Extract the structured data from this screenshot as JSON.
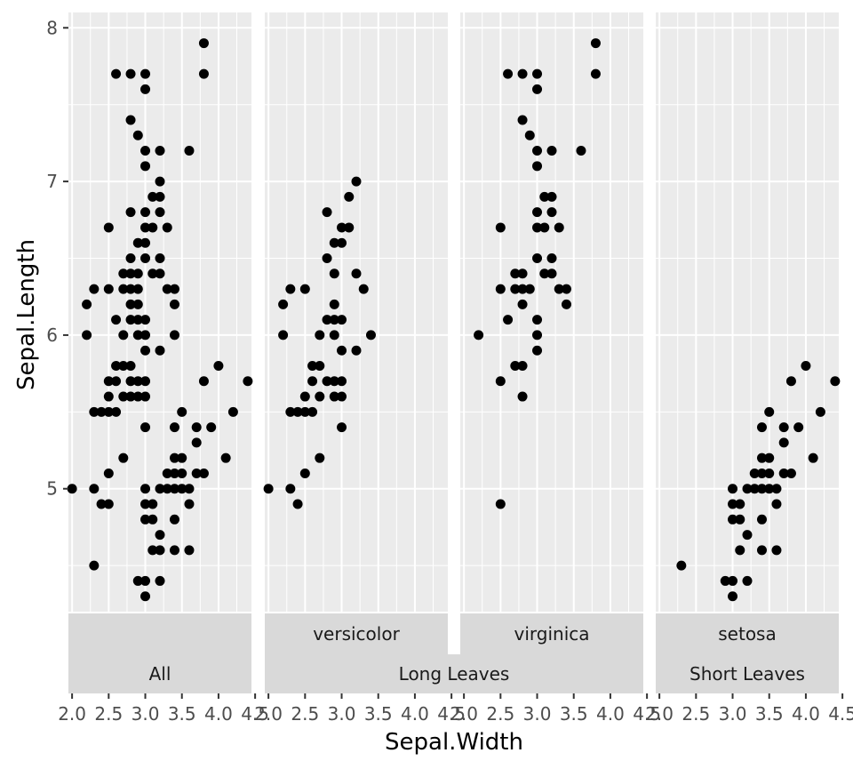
{
  "chart_data": {
    "type": "scatter",
    "xlabel": "Sepal.Width",
    "ylabel": "Sepal.Length",
    "xlim": [
      1.95,
      4.45
    ],
    "ylim": [
      4.2,
      8.1
    ],
    "x_ticks": [
      "2.0",
      "2.5",
      "3.0",
      "3.5",
      "4.0",
      "4.5"
    ],
    "y_ticks": [
      "5",
      "6",
      "7",
      "8"
    ],
    "x_tick_values": [
      2.0,
      2.5,
      3.0,
      3.5,
      4.0,
      4.5
    ],
    "y_tick_values": [
      5,
      6,
      7,
      8
    ],
    "colors": {
      "panel_background": "#ebebeb",
      "grid": "#ffffff",
      "strip_background": "#d9d9d9",
      "point": "#000000"
    },
    "panels": [
      {
        "strip_top": "",
        "strip_bottom": "All",
        "points": [
          [
            2.0,
            5.0
          ],
          [
            2.2,
            6.2
          ],
          [
            2.2,
            6.0
          ],
          [
            2.3,
            6.3
          ],
          [
            2.3,
            5.5
          ],
          [
            2.3,
            5.0
          ],
          [
            2.3,
            4.5
          ],
          [
            2.4,
            5.5
          ],
          [
            2.4,
            4.9
          ],
          [
            2.5,
            6.7
          ],
          [
            2.5,
            6.3
          ],
          [
            2.5,
            5.7
          ],
          [
            2.5,
            5.6
          ],
          [
            2.5,
            5.5
          ],
          [
            2.5,
            5.1
          ],
          [
            2.5,
            4.9
          ],
          [
            2.6,
            7.7
          ],
          [
            2.6,
            6.1
          ],
          [
            2.6,
            5.8
          ],
          [
            2.6,
            5.7
          ],
          [
            2.6,
            5.5
          ],
          [
            2.7,
            6.3
          ],
          [
            2.7,
            6.4
          ],
          [
            2.7,
            6.0
          ],
          [
            2.7,
            5.8
          ],
          [
            2.7,
            5.6
          ],
          [
            2.7,
            5.2
          ],
          [
            2.8,
            7.7
          ],
          [
            2.8,
            7.4
          ],
          [
            2.8,
            6.8
          ],
          [
            2.8,
            6.5
          ],
          [
            2.8,
            6.4
          ],
          [
            2.8,
            6.3
          ],
          [
            2.8,
            6.2
          ],
          [
            2.8,
            6.1
          ],
          [
            2.8,
            5.8
          ],
          [
            2.8,
            5.7
          ],
          [
            2.8,
            5.6
          ],
          [
            2.9,
            7.3
          ],
          [
            2.9,
            6.6
          ],
          [
            2.9,
            6.4
          ],
          [
            2.9,
            6.3
          ],
          [
            2.9,
            6.2
          ],
          [
            2.9,
            6.1
          ],
          [
            2.9,
            6.0
          ],
          [
            2.9,
            5.7
          ],
          [
            2.9,
            5.6
          ],
          [
            2.9,
            4.4
          ],
          [
            3.0,
            7.7
          ],
          [
            3.0,
            7.6
          ],
          [
            3.0,
            7.2
          ],
          [
            3.0,
            7.1
          ],
          [
            3.0,
            6.8
          ],
          [
            3.0,
            6.7
          ],
          [
            3.0,
            6.6
          ],
          [
            3.0,
            6.5
          ],
          [
            3.0,
            6.1
          ],
          [
            3.0,
            6.0
          ],
          [
            3.0,
            5.9
          ],
          [
            3.0,
            5.7
          ],
          [
            3.0,
            5.6
          ],
          [
            3.0,
            5.4
          ],
          [
            3.0,
            5.0
          ],
          [
            3.0,
            4.9
          ],
          [
            3.0,
            4.8
          ],
          [
            3.0,
            4.4
          ],
          [
            3.0,
            4.3
          ],
          [
            3.1,
            6.9
          ],
          [
            3.1,
            6.7
          ],
          [
            3.1,
            6.4
          ],
          [
            3.1,
            4.9
          ],
          [
            3.1,
            4.8
          ],
          [
            3.1,
            4.6
          ],
          [
            3.2,
            7.2
          ],
          [
            3.2,
            7.0
          ],
          [
            3.2,
            6.9
          ],
          [
            3.2,
            6.8
          ],
          [
            3.2,
            6.5
          ],
          [
            3.2,
            6.4
          ],
          [
            3.2,
            5.9
          ],
          [
            3.2,
            5.0
          ],
          [
            3.2,
            4.7
          ],
          [
            3.2,
            4.6
          ],
          [
            3.2,
            4.4
          ],
          [
            3.3,
            6.7
          ],
          [
            3.3,
            6.3
          ],
          [
            3.3,
            5.1
          ],
          [
            3.3,
            5.0
          ],
          [
            3.4,
            6.3
          ],
          [
            3.4,
            6.2
          ],
          [
            3.4,
            6.0
          ],
          [
            3.4,
            5.4
          ],
          [
            3.4,
            5.2
          ],
          [
            3.4,
            5.1
          ],
          [
            3.4,
            5.0
          ],
          [
            3.4,
            4.8
          ],
          [
            3.4,
            4.6
          ],
          [
            3.5,
            5.5
          ],
          [
            3.5,
            5.2
          ],
          [
            3.5,
            5.1
          ],
          [
            3.5,
            5.0
          ],
          [
            3.6,
            7.2
          ],
          [
            3.6,
            5.0
          ],
          [
            3.6,
            4.9
          ],
          [
            3.6,
            4.6
          ],
          [
            3.7,
            5.4
          ],
          [
            3.7,
            5.3
          ],
          [
            3.7,
            5.1
          ],
          [
            3.8,
            7.9
          ],
          [
            3.8,
            7.7
          ],
          [
            3.8,
            5.7
          ],
          [
            3.8,
            5.1
          ],
          [
            3.9,
            5.4
          ],
          [
            4.0,
            5.8
          ],
          [
            4.1,
            5.2
          ],
          [
            4.2,
            5.5
          ],
          [
            4.4,
            5.7
          ]
        ]
      },
      {
        "strip_top": "versicolor",
        "strip_bottom": "Long Leaves",
        "points": [
          [
            2.0,
            5.0
          ],
          [
            2.2,
            6.2
          ],
          [
            2.2,
            6.0
          ],
          [
            2.3,
            6.3
          ],
          [
            2.3,
            5.5
          ],
          [
            2.3,
            5.0
          ],
          [
            2.4,
            5.5
          ],
          [
            2.4,
            4.9
          ],
          [
            2.5,
            6.3
          ],
          [
            2.5,
            5.6
          ],
          [
            2.5,
            5.5
          ],
          [
            2.5,
            5.1
          ],
          [
            2.6,
            5.8
          ],
          [
            2.6,
            5.7
          ],
          [
            2.6,
            5.5
          ],
          [
            2.7,
            6.0
          ],
          [
            2.7,
            5.8
          ],
          [
            2.7,
            5.6
          ],
          [
            2.7,
            5.2
          ],
          [
            2.8,
            6.8
          ],
          [
            2.8,
            6.5
          ],
          [
            2.8,
            6.1
          ],
          [
            2.8,
            5.7
          ],
          [
            2.9,
            6.6
          ],
          [
            2.9,
            6.4
          ],
          [
            2.9,
            6.2
          ],
          [
            2.9,
            6.1
          ],
          [
            2.9,
            6.0
          ],
          [
            2.9,
            5.7
          ],
          [
            2.9,
            5.6
          ],
          [
            3.0,
            6.7
          ],
          [
            3.0,
            6.6
          ],
          [
            3.0,
            6.1
          ],
          [
            3.0,
            5.9
          ],
          [
            3.0,
            5.7
          ],
          [
            3.0,
            5.6
          ],
          [
            3.0,
            5.4
          ],
          [
            3.1,
            6.9
          ],
          [
            3.1,
            6.7
          ],
          [
            3.2,
            7.0
          ],
          [
            3.2,
            6.4
          ],
          [
            3.2,
            5.9
          ],
          [
            3.3,
            6.3
          ],
          [
            3.4,
            6.0
          ]
        ]
      },
      {
        "strip_top": "virginica",
        "strip_bottom": "",
        "points": [
          [
            2.2,
            6.0
          ],
          [
            2.5,
            6.7
          ],
          [
            2.5,
            6.3
          ],
          [
            2.5,
            5.7
          ],
          [
            2.5,
            4.9
          ],
          [
            2.6,
            7.7
          ],
          [
            2.6,
            6.1
          ],
          [
            2.7,
            6.4
          ],
          [
            2.7,
            6.3
          ],
          [
            2.7,
            5.8
          ],
          [
            2.8,
            7.7
          ],
          [
            2.8,
            7.4
          ],
          [
            2.8,
            6.4
          ],
          [
            2.8,
            6.3
          ],
          [
            2.8,
            6.2
          ],
          [
            2.8,
            5.8
          ],
          [
            2.8,
            5.6
          ],
          [
            2.9,
            7.3
          ],
          [
            2.9,
            6.3
          ],
          [
            3.0,
            7.7
          ],
          [
            3.0,
            7.6
          ],
          [
            3.0,
            7.2
          ],
          [
            3.0,
            7.1
          ],
          [
            3.0,
            6.8
          ],
          [
            3.0,
            6.7
          ],
          [
            3.0,
            6.5
          ],
          [
            3.0,
            6.1
          ],
          [
            3.0,
            6.0
          ],
          [
            3.0,
            5.9
          ],
          [
            3.1,
            6.9
          ],
          [
            3.1,
            6.7
          ],
          [
            3.1,
            6.4
          ],
          [
            3.2,
            7.2
          ],
          [
            3.2,
            6.9
          ],
          [
            3.2,
            6.8
          ],
          [
            3.2,
            6.5
          ],
          [
            3.2,
            6.4
          ],
          [
            3.3,
            6.7
          ],
          [
            3.3,
            6.3
          ],
          [
            3.4,
            6.3
          ],
          [
            3.4,
            6.2
          ],
          [
            3.6,
            7.2
          ],
          [
            3.8,
            7.9
          ],
          [
            3.8,
            7.7
          ]
        ]
      },
      {
        "strip_top": "setosa",
        "strip_bottom": "Short Leaves",
        "points": [
          [
            2.3,
            4.5
          ],
          [
            2.9,
            4.4
          ],
          [
            3.0,
            5.0
          ],
          [
            3.0,
            4.9
          ],
          [
            3.0,
            4.8
          ],
          [
            3.0,
            4.4
          ],
          [
            3.0,
            4.3
          ],
          [
            3.1,
            4.9
          ],
          [
            3.1,
            4.8
          ],
          [
            3.1,
            4.6
          ],
          [
            3.2,
            5.0
          ],
          [
            3.2,
            4.7
          ],
          [
            3.2,
            4.4
          ],
          [
            3.3,
            5.1
          ],
          [
            3.3,
            5.0
          ],
          [
            3.4,
            5.4
          ],
          [
            3.4,
            5.2
          ],
          [
            3.4,
            5.1
          ],
          [
            3.4,
            5.0
          ],
          [
            3.4,
            4.8
          ],
          [
            3.4,
            4.6
          ],
          [
            3.5,
            5.5
          ],
          [
            3.5,
            5.2
          ],
          [
            3.5,
            5.1
          ],
          [
            3.5,
            5.0
          ],
          [
            3.6,
            5.0
          ],
          [
            3.6,
            4.9
          ],
          [
            3.6,
            4.6
          ],
          [
            3.7,
            5.4
          ],
          [
            3.7,
            5.3
          ],
          [
            3.7,
            5.1
          ],
          [
            3.8,
            5.7
          ],
          [
            3.8,
            5.1
          ],
          [
            3.9,
            5.4
          ],
          [
            4.0,
            5.8
          ],
          [
            4.1,
            5.2
          ],
          [
            4.2,
            5.5
          ],
          [
            4.4,
            5.7
          ]
        ]
      }
    ]
  }
}
